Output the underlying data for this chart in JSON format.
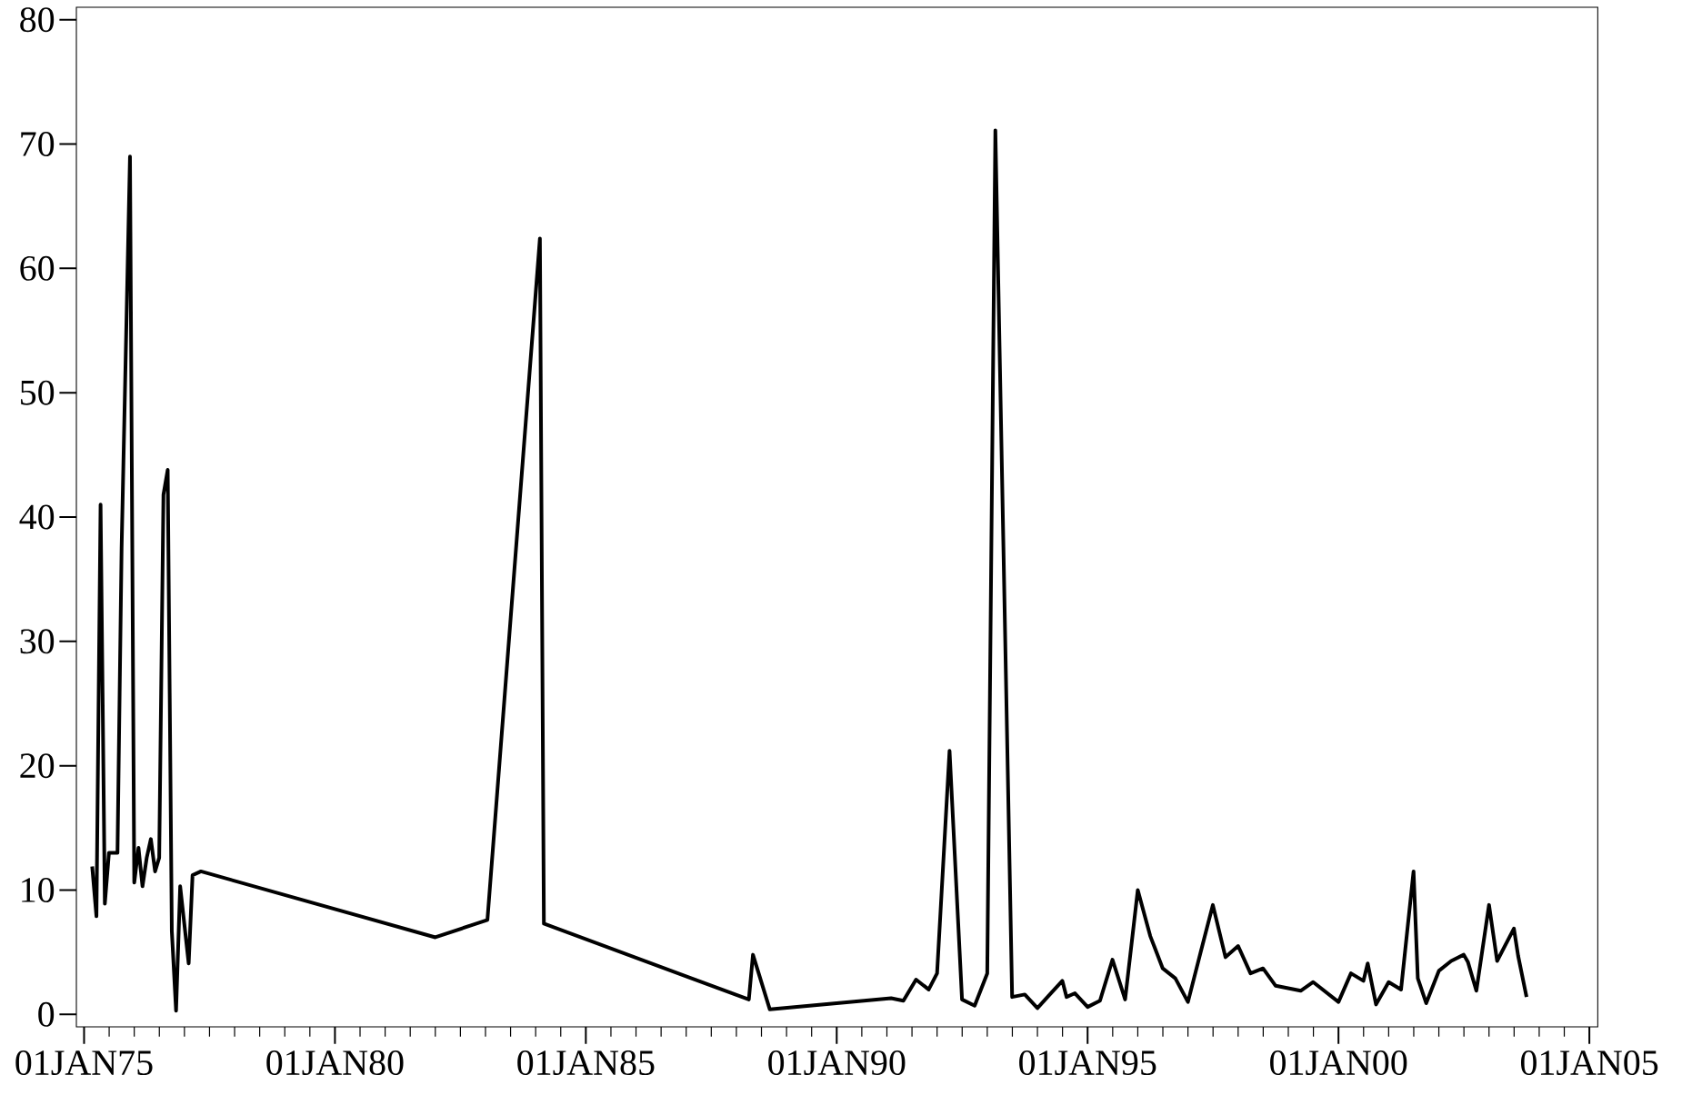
{
  "chart_data": {
    "type": "line",
    "color": "#000000",
    "marker": "none",
    "line_style": "solid",
    "grid": false,
    "x": [
      "1975-03",
      "1975-04",
      "1975-05",
      "1975-06",
      "1975-07",
      "1975-09",
      "1975-10",
      "1975-12",
      "1976-01",
      "1976-02",
      "1976-03",
      "1976-04",
      "1976-05",
      "1976-06",
      "1976-07",
      "1976-08",
      "1976-09",
      "1976-10",
      "1976-11",
      "1976-12",
      "1977-02",
      "1977-03",
      "1977-05",
      "1982-01",
      "1983-01-15",
      "1984-02",
      "1984-03",
      "1988-04",
      "1988-05",
      "1988-09",
      "1991-02",
      "1991-05",
      "1991-08",
      "1991-11",
      "1992-01",
      "1992-04",
      "1992-07",
      "1992-10",
      "1993-01",
      "1993-03",
      "1993-07",
      "1993-10",
      "1994-01",
      "1994-04",
      "1994-07",
      "1994-08",
      "1994-10",
      "1995-01",
      "1995-04",
      "1995-07",
      "1995-10",
      "1996-01",
      "1996-04",
      "1996-07",
      "1996-10",
      "1997-01",
      "1997-04",
      "1997-07",
      "1997-10",
      "1998-01",
      "1998-04",
      "1998-07",
      "1998-10",
      "1999-04",
      "1999-07",
      "2000-01",
      "2000-04",
      "2000-07",
      "2000-08",
      "2000-10",
      "2001-01",
      "2001-04",
      "2001-07",
      "2001-08",
      "2001-10",
      "2002-01",
      "2002-04",
      "2002-07",
      "2002-08",
      "2002-10",
      "2003-01",
      "2003-03",
      "2003-07",
      "2003-08",
      "2003-10"
    ],
    "values": [
      11.9,
      7.9,
      41.0,
      8.9,
      13.0,
      13.0,
      37.5,
      69.0,
      10.6,
      13.4,
      10.3,
      12.6,
      14.1,
      11.5,
      12.6,
      41.8,
      43.8,
      6.7,
      0.3,
      10.3,
      4.1,
      11.2,
      11.5,
      6.2,
      7.6,
      62.4,
      7.3,
      1.2,
      4.8,
      0.4,
      1.3,
      1.1,
      2.8,
      2.0,
      3.3,
      21.2,
      1.2,
      0.7,
      3.3,
      71.1,
      1.4,
      1.6,
      0.5,
      1.6,
      2.7,
      1.4,
      1.7,
      0.6,
      1.1,
      4.4,
      1.2,
      10.0,
      6.3,
      3.7,
      2.9,
      1.0,
      4.9,
      8.8,
      4.6,
      5.5,
      3.3,
      3.7,
      2.3,
      1.9,
      2.6,
      1.0,
      3.3,
      2.7,
      4.1,
      0.8,
      2.6,
      2.0,
      11.5,
      2.9,
      0.9,
      3.5,
      4.3,
      4.8,
      4.2,
      1.9,
      8.8,
      4.3,
      6.9,
      4.7,
      1.4
    ],
    "xlim": [
      "1974-11-06",
      "2005-03-03"
    ],
    "ylim": [
      -1,
      81
    ],
    "xticks": [
      {
        "value": "1975-01-01",
        "label": "01JAN75"
      },
      {
        "value": "1980-01-01",
        "label": "01JAN80"
      },
      {
        "value": "1985-01-01",
        "label": "01JAN85"
      },
      {
        "value": "1990-01-01",
        "label": "01JAN90"
      },
      {
        "value": "1995-01-01",
        "label": "01JAN95"
      },
      {
        "value": "2000-01-01",
        "label": "01JAN00"
      },
      {
        "value": "2005-01-01",
        "label": "01JAN05"
      }
    ],
    "yticks": [
      0,
      10,
      20,
      30,
      40,
      50,
      60,
      70,
      80
    ]
  }
}
